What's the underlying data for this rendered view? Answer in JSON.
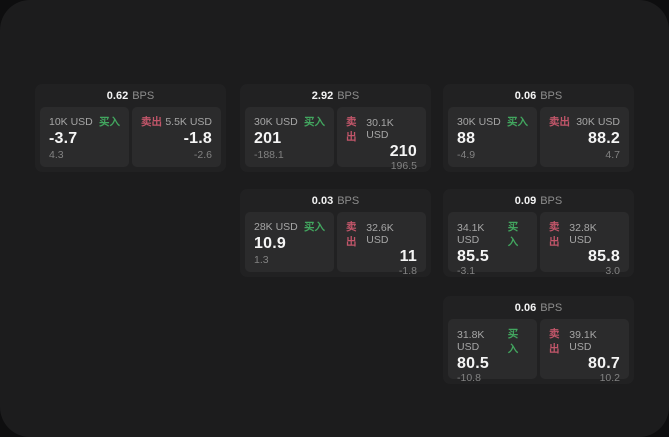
{
  "colors": {
    "buy": "#42a65f",
    "sell": "#c2566a",
    "surface": "#1c1c1d",
    "card": "#212122",
    "tile": "#2b2b2c"
  },
  "labels": {
    "buy": "买入",
    "sell": "卖出",
    "bps_unit": "BPS"
  },
  "cards": [
    {
      "grid": {
        "row": 1,
        "col": 1
      },
      "spread_bps": "0.62",
      "buy": {
        "size": "10K USD",
        "price": "-3.7",
        "delta": "4.3"
      },
      "sell": {
        "size": "5.5K USD",
        "price": "-1.8",
        "delta": "-2.6"
      }
    },
    {
      "grid": {
        "row": 1,
        "col": 2
      },
      "spread_bps": "2.92",
      "buy": {
        "size": "30K USD",
        "price": "201",
        "delta": "-188.1"
      },
      "sell": {
        "size": "30.1K USD",
        "price": "210",
        "delta": "196.5"
      }
    },
    {
      "grid": {
        "row": 1,
        "col": 3
      },
      "spread_bps": "0.06",
      "buy": {
        "size": "30K USD",
        "price": "88",
        "delta": "-4.9"
      },
      "sell": {
        "size": "30K USD",
        "price": "88.2",
        "delta": "4.7"
      }
    },
    {
      "grid": {
        "row": 2,
        "col": 2
      },
      "spread_bps": "0.03",
      "buy": {
        "size": "28K USD",
        "price": "10.9",
        "delta": "1.3"
      },
      "sell": {
        "size": "32.6K USD",
        "price": "11",
        "delta": "-1.8"
      }
    },
    {
      "grid": {
        "row": 2,
        "col": 3
      },
      "spread_bps": "0.09",
      "buy": {
        "size": "34.1K USD",
        "price": "85.5",
        "delta": "-3.1"
      },
      "sell": {
        "size": "32.8K USD",
        "price": "85.8",
        "delta": "3.0"
      }
    },
    {
      "grid": {
        "row": 3,
        "col": 3
      },
      "spread_bps": "0.06",
      "buy": {
        "size": "31.8K USD",
        "price": "80.5",
        "delta": "-10.8"
      },
      "sell": {
        "size": "39.1K USD",
        "price": "80.7",
        "delta": "10.2"
      }
    }
  ]
}
